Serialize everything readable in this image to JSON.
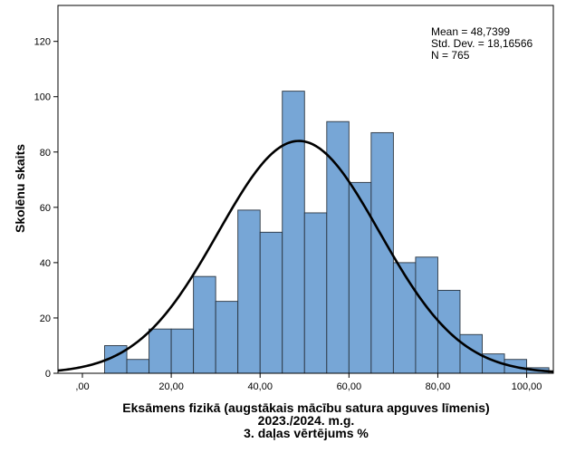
{
  "chart_data": {
    "type": "bar",
    "subtype": "histogram",
    "xlabel_lines": [
      "Eksāmens fizikā (augstākais mācību satura apguves līmenis)",
      "2023./2024. m.g.",
      "3. daļas vērtējums %"
    ],
    "ylabel": "Skolēnu skaits",
    "bin_width": 5,
    "bin_start": 5,
    "values": [
      10,
      5,
      16,
      16,
      35,
      26,
      59,
      51,
      102,
      58,
      91,
      69,
      87,
      40,
      42,
      30,
      14,
      7,
      5,
      2
    ],
    "xlim": [
      -5.5,
      106
    ],
    "ylim": [
      0,
      133
    ],
    "x_ticks": [
      0,
      20,
      40,
      60,
      80,
      100
    ],
    "x_tick_labels": [
      ",00",
      "20,00",
      "40,00",
      "60,00",
      "80,00",
      "100,00"
    ],
    "y_ticks": [
      0,
      20,
      40,
      60,
      80,
      100,
      120
    ],
    "y_tick_labels": [
      "0",
      "20",
      "40",
      "60",
      "80",
      "100",
      "120"
    ],
    "normal_curve": {
      "mean": 48.7399,
      "sd": 18.16566,
      "n": 765
    },
    "stats": [
      "Mean = 48,7399",
      "Std. Dev. = 18,16566",
      "N = 765"
    ],
    "colors": {
      "bar_fill": "#77a6d6",
      "bar_stroke": "#2a3540",
      "curve": "#000000",
      "frame": "#000000"
    }
  }
}
